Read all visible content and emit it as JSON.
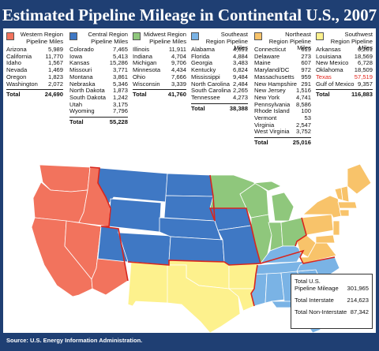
{
  "title": "Estimated Pipeline Mileage in Continental U.S., 2007",
  "source": "Source: U.S. Energy Information Administration.",
  "regions": [
    {
      "key": "western",
      "title": "Western Region Pipeline Miles",
      "color": "#f2735d",
      "rows": [
        [
          "Arizona",
          "5,989"
        ],
        [
          "California",
          "11,770"
        ],
        [
          "Idaho",
          "1,567"
        ],
        [
          "Nevada",
          "1,469"
        ],
        [
          "Oregon",
          "1,823"
        ],
        [
          "Washington",
          "2,072"
        ]
      ],
      "total_label": "Total",
      "total": "24,690"
    },
    {
      "key": "central",
      "title": "Central Region Pipeline Miles",
      "color": "#3f78c4",
      "rows": [
        [
          "Colorado",
          "7,465"
        ],
        [
          "Iowa",
          "5,413"
        ],
        [
          "Kansas",
          "15,286"
        ],
        [
          "Missouri",
          "3,771"
        ],
        [
          "Montana",
          "3,861"
        ],
        [
          "Nebraska",
          "5,346"
        ],
        [
          "North Dakota",
          "1,873"
        ],
        [
          "South Dakota",
          "1,242"
        ],
        [
          "Utah",
          "3,175"
        ],
        [
          "Wyoming",
          "7,796"
        ]
      ],
      "total_label": "Total",
      "total": "55,228"
    },
    {
      "key": "midwest",
      "title": "Midwest Region Pipeline Miles",
      "color": "#8fc77c",
      "rows": [
        [
          "Illinois",
          "11,911"
        ],
        [
          "Indiana",
          "4,704"
        ],
        [
          "Michigan",
          "9,706"
        ],
        [
          "Minnesota",
          "4,434"
        ],
        [
          "Ohio",
          "7,666"
        ],
        [
          "Wisconsin",
          "3,339"
        ]
      ],
      "total_label": "Total",
      "total": "41,760"
    },
    {
      "key": "southeast",
      "title": "Southeast Region Pipeline Miles",
      "color": "#7ab3e5",
      "rows": [
        [
          "Alabama",
          "4,691"
        ],
        [
          "Florida",
          "4,884"
        ],
        [
          "Georgia",
          "3,483"
        ],
        [
          "Kentucky",
          "6,824"
        ],
        [
          "Mississippi",
          "9,484"
        ],
        [
          "North Carolina",
          "2,484"
        ],
        [
          "South Carolina",
          "2,265"
        ],
        [
          "Tennessee",
          "4,273"
        ]
      ],
      "total_label": "Total",
      "total": "38,388"
    },
    {
      "key": "northeast",
      "title": "Northeast Region Pipeline Miles",
      "color": "#f8c36a",
      "rows": [
        [
          "Connecticut",
          "619"
        ],
        [
          "Delaware",
          "273"
        ],
        [
          "Maine",
          "607"
        ],
        [
          "Maryland/DC",
          "972"
        ],
        [
          "Massachusetts",
          "959"
        ],
        [
          "New Hampshire",
          "291"
        ],
        [
          "New Jersey",
          "1,516"
        ],
        [
          "New York",
          "4,741"
        ],
        [
          "Pennsylvania",
          "8,586"
        ],
        [
          "Rhode Island",
          "100"
        ],
        [
          "Vermont",
          "53"
        ],
        [
          "Virginia",
          "2,547"
        ],
        [
          "West Virginia",
          "3,752"
        ]
      ],
      "total_label": "Total",
      "total": "25,016"
    },
    {
      "key": "southwest",
      "title": "Southwest Region Pipeline Miles",
      "color": "#fdf18d",
      "rows": [
        [
          "Arkansas",
          "6,201"
        ],
        [
          "Louisiana",
          "18,569"
        ],
        [
          "New Mexico",
          "6,728"
        ],
        [
          "Oklahoma",
          "18,509"
        ],
        [
          "Texas",
          "57,519"
        ],
        [
          "Gulf of Mexico",
          "9,357"
        ]
      ],
      "highlight_row": "Texas",
      "total_label": "Total",
      "total": "116,883"
    }
  ],
  "summary": {
    "rows": [
      {
        "label": "Total U.S. Pipeline Mileage",
        "value": "301,965"
      },
      {
        "label": "Total Interstate",
        "value": "214,623"
      },
      {
        "label": "Total Non-Interstate",
        "value": "87,342"
      }
    ]
  },
  "colors": {
    "background": "#1f3f73",
    "highlight": "#e2231a",
    "ocean": "#ffffff",
    "state_border": "#ffffff",
    "region_border": "#d8261e"
  }
}
